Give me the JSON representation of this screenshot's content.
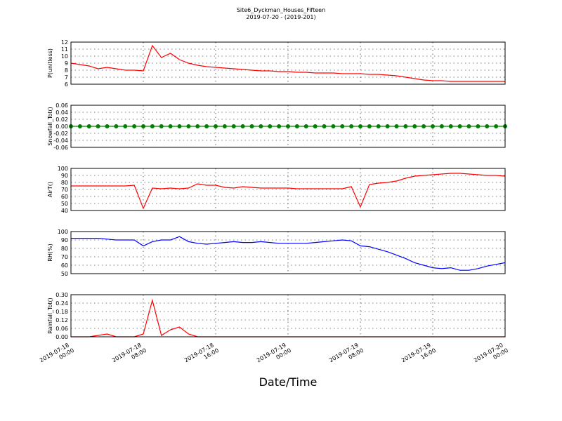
{
  "title": "Site6_Dyckman_Houses_Fifteen",
  "subtitle": "2019-07-20 - (2019-201)",
  "x_label": "Date/Time",
  "chart_data": [
    {
      "type": "line",
      "y_label": "P(unitless)",
      "color": "#ff0000",
      "grid": true,
      "xlim": [
        "2019-07-18 00:00",
        "2019-07-20 00:00"
      ],
      "ylim": [
        6,
        12
      ],
      "yticks": [
        6,
        7,
        8,
        9,
        10,
        11,
        12
      ],
      "x": [
        "2019-07-18 00:00",
        "2019-07-18 01:00",
        "2019-07-18 02:00",
        "2019-07-18 03:00",
        "2019-07-18 04:00",
        "2019-07-18 05:00",
        "2019-07-18 06:00",
        "2019-07-18 07:00",
        "2019-07-18 08:00",
        "2019-07-18 09:00",
        "2019-07-18 10:00",
        "2019-07-18 11:00",
        "2019-07-18 12:00",
        "2019-07-18 13:00",
        "2019-07-18 14:00",
        "2019-07-18 15:00",
        "2019-07-18 16:00",
        "2019-07-18 17:00",
        "2019-07-18 18:00",
        "2019-07-18 19:00",
        "2019-07-18 20:00",
        "2019-07-18 21:00",
        "2019-07-18 22:00",
        "2019-07-18 23:00",
        "2019-07-19 00:00",
        "2019-07-19 01:00",
        "2019-07-19 02:00",
        "2019-07-19 03:00",
        "2019-07-19 04:00",
        "2019-07-19 05:00",
        "2019-07-19 06:00",
        "2019-07-19 07:00",
        "2019-07-19 08:00",
        "2019-07-19 09:00",
        "2019-07-19 10:00",
        "2019-07-19 11:00",
        "2019-07-19 12:00",
        "2019-07-19 13:00",
        "2019-07-19 14:00",
        "2019-07-19 15:00",
        "2019-07-19 16:00",
        "2019-07-19 17:00",
        "2019-07-19 18:00",
        "2019-07-19 19:00",
        "2019-07-19 20:00",
        "2019-07-19 21:00",
        "2019-07-19 22:00",
        "2019-07-19 23:00",
        "2019-07-20 00:00"
      ],
      "values": [
        9.0,
        8.8,
        8.6,
        8.2,
        8.4,
        8.2,
        8.0,
        8.0,
        7.9,
        11.5,
        9.8,
        10.4,
        9.5,
        9.0,
        8.7,
        8.5,
        8.4,
        8.3,
        8.2,
        8.1,
        8.0,
        7.9,
        7.9,
        7.8,
        7.8,
        7.7,
        7.7,
        7.6,
        7.6,
        7.6,
        7.5,
        7.5,
        7.5,
        7.4,
        7.4,
        7.3,
        7.2,
        7.0,
        6.8,
        6.6,
        6.5,
        6.5,
        6.4,
        6.4,
        6.4,
        6.4,
        6.4,
        6.4,
        6.4
      ]
    },
    {
      "type": "line",
      "y_label": "Snowfall_Tot()",
      "color": "#008000",
      "marker": "o",
      "grid": true,
      "xlim": [
        "2019-07-18 00:00",
        "2019-07-20 00:00"
      ],
      "ylim": [
        -0.06,
        0.06
      ],
      "yticks": [
        -0.06,
        -0.04,
        -0.02,
        {
          "value": 0,
          "label": "0.00"
        },
        0.02,
        0.04,
        0.06
      ],
      "x": [
        "2019-07-18 00:00",
        "2019-07-18 01:00",
        "2019-07-18 02:00",
        "2019-07-18 03:00",
        "2019-07-18 04:00",
        "2019-07-18 05:00",
        "2019-07-18 06:00",
        "2019-07-18 07:00",
        "2019-07-18 08:00",
        "2019-07-18 09:00",
        "2019-07-18 10:00",
        "2019-07-18 11:00",
        "2019-07-18 12:00",
        "2019-07-18 13:00",
        "2019-07-18 14:00",
        "2019-07-18 15:00",
        "2019-07-18 16:00",
        "2019-07-18 17:00",
        "2019-07-18 18:00",
        "2019-07-18 19:00",
        "2019-07-18 20:00",
        "2019-07-18 21:00",
        "2019-07-18 22:00",
        "2019-07-18 23:00",
        "2019-07-19 00:00",
        "2019-07-19 01:00",
        "2019-07-19 02:00",
        "2019-07-19 03:00",
        "2019-07-19 04:00",
        "2019-07-19 05:00",
        "2019-07-19 06:00",
        "2019-07-19 07:00",
        "2019-07-19 08:00",
        "2019-07-19 09:00",
        "2019-07-19 10:00",
        "2019-07-19 11:00",
        "2019-07-19 12:00",
        "2019-07-19 13:00",
        "2019-07-19 14:00",
        "2019-07-19 15:00",
        "2019-07-19 16:00",
        "2019-07-19 17:00",
        "2019-07-19 18:00",
        "2019-07-19 19:00",
        "2019-07-19 20:00",
        "2019-07-19 21:00",
        "2019-07-19 22:00",
        "2019-07-19 23:00",
        "2019-07-20 00:00"
      ],
      "values": [
        0,
        0,
        0,
        0,
        0,
        0,
        0,
        0,
        0,
        0,
        0,
        0,
        0,
        0,
        0,
        0,
        0,
        0,
        0,
        0,
        0,
        0,
        0,
        0,
        0,
        0,
        0,
        0,
        0,
        0,
        0,
        0,
        0,
        0,
        0,
        0,
        0,
        0,
        0,
        0,
        0,
        0,
        0,
        0,
        0,
        0,
        0,
        0,
        0
      ]
    },
    {
      "type": "line",
      "y_label": "AirT()",
      "color": "#ff0000",
      "grid": true,
      "xlim": [
        "2019-07-18 00:00",
        "2019-07-20 00:00"
      ],
      "ylim": [
        40,
        100
      ],
      "yticks": [
        40,
        50,
        60,
        70,
        80,
        90,
        100
      ],
      "x": [
        "2019-07-18 00:00",
        "2019-07-18 01:00",
        "2019-07-18 02:00",
        "2019-07-18 03:00",
        "2019-07-18 04:00",
        "2019-07-18 05:00",
        "2019-07-18 06:00",
        "2019-07-18 07:00",
        "2019-07-18 08:00",
        "2019-07-18 09:00",
        "2019-07-18 10:00",
        "2019-07-18 11:00",
        "2019-07-18 12:00",
        "2019-07-18 13:00",
        "2019-07-18 14:00",
        "2019-07-18 15:00",
        "2019-07-18 16:00",
        "2019-07-18 17:00",
        "2019-07-18 18:00",
        "2019-07-18 19:00",
        "2019-07-18 20:00",
        "2019-07-18 21:00",
        "2019-07-18 22:00",
        "2019-07-18 23:00",
        "2019-07-19 00:00",
        "2019-07-19 01:00",
        "2019-07-19 02:00",
        "2019-07-19 03:00",
        "2019-07-19 04:00",
        "2019-07-19 05:00",
        "2019-07-19 06:00",
        "2019-07-19 07:00",
        "2019-07-19 08:00",
        "2019-07-19 09:00",
        "2019-07-19 10:00",
        "2019-07-19 11:00",
        "2019-07-19 12:00",
        "2019-07-19 13:00",
        "2019-07-19 14:00",
        "2019-07-19 15:00",
        "2019-07-19 16:00",
        "2019-07-19 17:00",
        "2019-07-19 18:00",
        "2019-07-19 19:00",
        "2019-07-19 20:00",
        "2019-07-19 21:00",
        "2019-07-19 22:00",
        "2019-07-19 23:00",
        "2019-07-20 00:00"
      ],
      "values": [
        75,
        75,
        75,
        75,
        75,
        75,
        75,
        76,
        43,
        72,
        71,
        72,
        71,
        72,
        78,
        76,
        76,
        73,
        72,
        74,
        73,
        72,
        72,
        72,
        72,
        71,
        71,
        71,
        71,
        71,
        71,
        74,
        45,
        77,
        79,
        80,
        82,
        86,
        89,
        90,
        91,
        92,
        93,
        93,
        92,
        91,
        90,
        90,
        89
      ]
    },
    {
      "type": "line",
      "y_label": "RH(%)",
      "color": "#0000ff",
      "grid": true,
      "xlim": [
        "2019-07-18 00:00",
        "2019-07-20 00:00"
      ],
      "ylim": [
        50,
        100
      ],
      "yticks": [
        50,
        60,
        70,
        80,
        90,
        100
      ],
      "x": [
        "2019-07-18 00:00",
        "2019-07-18 01:00",
        "2019-07-18 02:00",
        "2019-07-18 03:00",
        "2019-07-18 04:00",
        "2019-07-18 05:00",
        "2019-07-18 06:00",
        "2019-07-18 07:00",
        "2019-07-18 08:00",
        "2019-07-18 09:00",
        "2019-07-18 10:00",
        "2019-07-18 11:00",
        "2019-07-18 12:00",
        "2019-07-18 13:00",
        "2019-07-18 14:00",
        "2019-07-18 15:00",
        "2019-07-18 16:00",
        "2019-07-18 17:00",
        "2019-07-18 18:00",
        "2019-07-18 19:00",
        "2019-07-18 20:00",
        "2019-07-18 21:00",
        "2019-07-18 22:00",
        "2019-07-18 23:00",
        "2019-07-19 00:00",
        "2019-07-19 01:00",
        "2019-07-19 02:00",
        "2019-07-19 03:00",
        "2019-07-19 04:00",
        "2019-07-19 05:00",
        "2019-07-19 06:00",
        "2019-07-19 07:00",
        "2019-07-19 08:00",
        "2019-07-19 09:00",
        "2019-07-19 10:00",
        "2019-07-19 11:00",
        "2019-07-19 12:00",
        "2019-07-19 13:00",
        "2019-07-19 14:00",
        "2019-07-19 15:00",
        "2019-07-19 16:00",
        "2019-07-19 17:00",
        "2019-07-19 18:00",
        "2019-07-19 19:00",
        "2019-07-19 20:00",
        "2019-07-19 21:00",
        "2019-07-19 22:00",
        "2019-07-19 23:00",
        "2019-07-20 00:00"
      ],
      "values": [
        92,
        92,
        92,
        92,
        91,
        90,
        90,
        90,
        83,
        88,
        90,
        90,
        94,
        88,
        86,
        85,
        86,
        87,
        88,
        87,
        87,
        88,
        87,
        86,
        86,
        86,
        86,
        87,
        88,
        89,
        90,
        89,
        83,
        82,
        79,
        76,
        72,
        68,
        63,
        60,
        57,
        56,
        57,
        54,
        54,
        56,
        59,
        61,
        63
      ]
    },
    {
      "type": "line",
      "y_label": "Rainfall_Tot()",
      "color": "#ff0000",
      "grid": true,
      "xlim": [
        "2019-07-18 00:00",
        "2019-07-20 00:00"
      ],
      "ylim": [
        0,
        0.3
      ],
      "yticks": [
        {
          "value": 0,
          "label": "0.00"
        },
        0.06,
        0.12,
        0.18,
        0.24,
        {
          "value": 0.3,
          "label": "0.30"
        }
      ],
      "xticks": [
        "2019-07-18 00:00",
        "2019-07-18 08:00",
        "2019-07-18 16:00",
        "2019-07-19 00:00",
        "2019-07-19 08:00",
        "2019-07-19 16:00",
        "2019-07-20 00:00"
      ],
      "x": [
        "2019-07-18 00:00",
        "2019-07-18 01:00",
        "2019-07-18 02:00",
        "2019-07-18 03:00",
        "2019-07-18 04:00",
        "2019-07-18 05:00",
        "2019-07-18 06:00",
        "2019-07-18 07:00",
        "2019-07-18 08:00",
        "2019-07-18 09:00",
        "2019-07-18 10:00",
        "2019-07-18 11:00",
        "2019-07-18 12:00",
        "2019-07-18 13:00",
        "2019-07-18 14:00",
        "2019-07-18 15:00",
        "2019-07-18 16:00",
        "2019-07-18 17:00",
        "2019-07-18 18:00",
        "2019-07-18 19:00",
        "2019-07-18 20:00",
        "2019-07-18 21:00",
        "2019-07-18 22:00",
        "2019-07-18 23:00",
        "2019-07-19 00:00",
        "2019-07-19 01:00",
        "2019-07-19 02:00",
        "2019-07-19 03:00",
        "2019-07-19 04:00",
        "2019-07-19 05:00",
        "2019-07-19 06:00",
        "2019-07-19 07:00",
        "2019-07-19 08:00",
        "2019-07-19 09:00",
        "2019-07-19 10:00",
        "2019-07-19 11:00",
        "2019-07-19 12:00",
        "2019-07-19 13:00",
        "2019-07-19 14:00",
        "2019-07-19 15:00",
        "2019-07-19 16:00",
        "2019-07-19 17:00",
        "2019-07-19 18:00",
        "2019-07-19 19:00",
        "2019-07-19 20:00",
        "2019-07-19 21:00",
        "2019-07-19 22:00",
        "2019-07-19 23:00",
        "2019-07-20 00:00"
      ],
      "values": [
        0,
        0,
        0,
        0.01,
        0.02,
        0,
        0,
        0,
        0.02,
        0.26,
        0.01,
        0.05,
        0.07,
        0.02,
        0,
        0,
        0,
        0,
        0,
        0,
        0,
        0,
        0,
        0,
        0,
        0,
        0,
        0,
        0,
        0,
        0,
        0,
        0,
        0,
        0,
        0,
        0,
        0,
        0,
        0,
        0,
        0,
        0,
        0,
        0,
        0,
        0,
        0,
        0
      ]
    }
  ]
}
